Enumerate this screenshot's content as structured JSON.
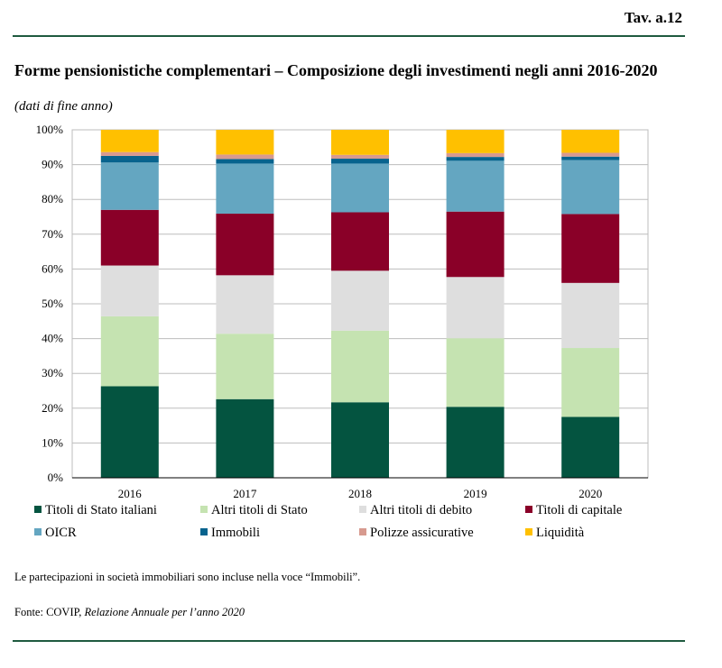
{
  "table_id": "Tav. a.12",
  "title": "Forme pensionistiche complementari – Composizione degli investimenti negli anni 2016-2020",
  "subtitle": "(dati di fine anno)",
  "note": "Le partecipazioni in società immobiliari sono incluse nella voce “Immobili”.",
  "source_prefix": "Fonte: COVIP, ",
  "source_italic": "Relazione Annuale per l’anno 2020",
  "chart_data": {
    "type": "bar",
    "stacked": true,
    "categories": [
      "2016",
      "2017",
      "2018",
      "2019",
      "2020"
    ],
    "ylim": [
      0,
      100
    ],
    "yticks": [
      0,
      10,
      20,
      30,
      40,
      50,
      60,
      70,
      80,
      90,
      100
    ],
    "ytick_labels": [
      "0%",
      "10%",
      "20%",
      "30%",
      "40%",
      "50%",
      "60%",
      "70%",
      "80%",
      "90%",
      "100%"
    ],
    "grid": true,
    "legend_position": "bottom",
    "series": [
      {
        "name": "Titoli di Stato italiani",
        "color": "#045440",
        "values": [
          26.3,
          22.6,
          21.7,
          20.4,
          17.5
        ]
      },
      {
        "name": "Altri titoli di Stato",
        "color": "#c5e3b1",
        "values": [
          20.1,
          18.8,
          20.6,
          19.7,
          19.8
        ]
      },
      {
        "name": "Altri titoli di debito",
        "color": "#dedede",
        "values": [
          14.6,
          16.8,
          17.2,
          17.6,
          18.7
        ]
      },
      {
        "name": "Titoli di capitale",
        "color": "#8a0028",
        "values": [
          16.0,
          17.7,
          16.8,
          18.8,
          19.8
        ]
      },
      {
        "name": "OICR",
        "color": "#64a6c1",
        "values": [
          13.6,
          14.4,
          14.0,
          14.6,
          15.5
        ]
      },
      {
        "name": "Immobili",
        "color": "#07638e",
        "values": [
          1.9,
          1.3,
          1.4,
          1.1,
          1.0
        ]
      },
      {
        "name": "Polizze assicurative",
        "color": "#d79a8f",
        "values": [
          1.1,
          1.3,
          1.1,
          1.1,
          1.1
        ]
      },
      {
        "name": "Liquidità",
        "color": "#ffc000",
        "values": [
          6.4,
          7.1,
          7.2,
          6.7,
          6.6
        ]
      }
    ]
  }
}
